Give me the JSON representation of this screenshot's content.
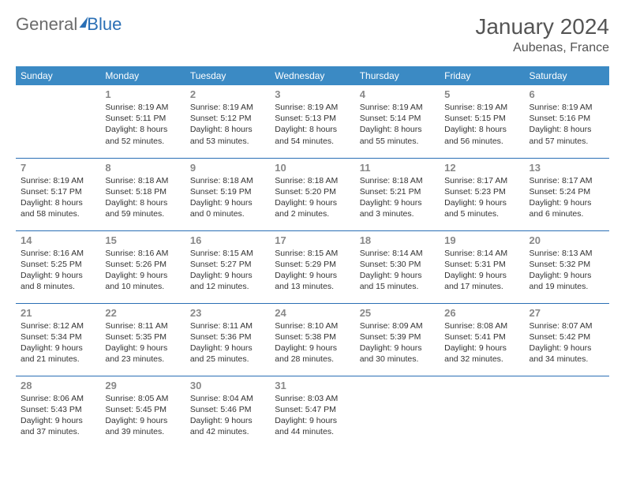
{
  "logo": {
    "word1": "General",
    "word2": "Blue"
  },
  "title": "January 2024",
  "location": "Aubenas, France",
  "day_headers": [
    "Sunday",
    "Monday",
    "Tuesday",
    "Wednesday",
    "Thursday",
    "Friday",
    "Saturday"
  ],
  "style": {
    "header_bg": "#3b8ac4",
    "header_fg": "#ffffff",
    "row_border": "#2a6fb5",
    "daynum_color": "#888888",
    "body_text_color": "#333333",
    "title_color": "#555555",
    "page_bg": "#ffffff",
    "cell_font_size": 10.5,
    "header_font_size": 12,
    "title_font_size": 28,
    "location_font_size": 16,
    "logo_font_size": 22
  },
  "weeks": [
    [
      {
        "day": "",
        "lines": [
          "",
          "",
          "",
          ""
        ]
      },
      {
        "day": "1",
        "lines": [
          "Sunrise: 8:19 AM",
          "Sunset: 5:11 PM",
          "Daylight: 8 hours",
          "and 52 minutes."
        ]
      },
      {
        "day": "2",
        "lines": [
          "Sunrise: 8:19 AM",
          "Sunset: 5:12 PM",
          "Daylight: 8 hours",
          "and 53 minutes."
        ]
      },
      {
        "day": "3",
        "lines": [
          "Sunrise: 8:19 AM",
          "Sunset: 5:13 PM",
          "Daylight: 8 hours",
          "and 54 minutes."
        ]
      },
      {
        "day": "4",
        "lines": [
          "Sunrise: 8:19 AM",
          "Sunset: 5:14 PM",
          "Daylight: 8 hours",
          "and 55 minutes."
        ]
      },
      {
        "day": "5",
        "lines": [
          "Sunrise: 8:19 AM",
          "Sunset: 5:15 PM",
          "Daylight: 8 hours",
          "and 56 minutes."
        ]
      },
      {
        "day": "6",
        "lines": [
          "Sunrise: 8:19 AM",
          "Sunset: 5:16 PM",
          "Daylight: 8 hours",
          "and 57 minutes."
        ]
      }
    ],
    [
      {
        "day": "7",
        "lines": [
          "Sunrise: 8:19 AM",
          "Sunset: 5:17 PM",
          "Daylight: 8 hours",
          "and 58 minutes."
        ]
      },
      {
        "day": "8",
        "lines": [
          "Sunrise: 8:18 AM",
          "Sunset: 5:18 PM",
          "Daylight: 8 hours",
          "and 59 minutes."
        ]
      },
      {
        "day": "9",
        "lines": [
          "Sunrise: 8:18 AM",
          "Sunset: 5:19 PM",
          "Daylight: 9 hours",
          "and 0 minutes."
        ]
      },
      {
        "day": "10",
        "lines": [
          "Sunrise: 8:18 AM",
          "Sunset: 5:20 PM",
          "Daylight: 9 hours",
          "and 2 minutes."
        ]
      },
      {
        "day": "11",
        "lines": [
          "Sunrise: 8:18 AM",
          "Sunset: 5:21 PM",
          "Daylight: 9 hours",
          "and 3 minutes."
        ]
      },
      {
        "day": "12",
        "lines": [
          "Sunrise: 8:17 AM",
          "Sunset: 5:23 PM",
          "Daylight: 9 hours",
          "and 5 minutes."
        ]
      },
      {
        "day": "13",
        "lines": [
          "Sunrise: 8:17 AM",
          "Sunset: 5:24 PM",
          "Daylight: 9 hours",
          "and 6 minutes."
        ]
      }
    ],
    [
      {
        "day": "14",
        "lines": [
          "Sunrise: 8:16 AM",
          "Sunset: 5:25 PM",
          "Daylight: 9 hours",
          "and 8 minutes."
        ]
      },
      {
        "day": "15",
        "lines": [
          "Sunrise: 8:16 AM",
          "Sunset: 5:26 PM",
          "Daylight: 9 hours",
          "and 10 minutes."
        ]
      },
      {
        "day": "16",
        "lines": [
          "Sunrise: 8:15 AM",
          "Sunset: 5:27 PM",
          "Daylight: 9 hours",
          "and 12 minutes."
        ]
      },
      {
        "day": "17",
        "lines": [
          "Sunrise: 8:15 AM",
          "Sunset: 5:29 PM",
          "Daylight: 9 hours",
          "and 13 minutes."
        ]
      },
      {
        "day": "18",
        "lines": [
          "Sunrise: 8:14 AM",
          "Sunset: 5:30 PM",
          "Daylight: 9 hours",
          "and 15 minutes."
        ]
      },
      {
        "day": "19",
        "lines": [
          "Sunrise: 8:14 AM",
          "Sunset: 5:31 PM",
          "Daylight: 9 hours",
          "and 17 minutes."
        ]
      },
      {
        "day": "20",
        "lines": [
          "Sunrise: 8:13 AM",
          "Sunset: 5:32 PM",
          "Daylight: 9 hours",
          "and 19 minutes."
        ]
      }
    ],
    [
      {
        "day": "21",
        "lines": [
          "Sunrise: 8:12 AM",
          "Sunset: 5:34 PM",
          "Daylight: 9 hours",
          "and 21 minutes."
        ]
      },
      {
        "day": "22",
        "lines": [
          "Sunrise: 8:11 AM",
          "Sunset: 5:35 PM",
          "Daylight: 9 hours",
          "and 23 minutes."
        ]
      },
      {
        "day": "23",
        "lines": [
          "Sunrise: 8:11 AM",
          "Sunset: 5:36 PM",
          "Daylight: 9 hours",
          "and 25 minutes."
        ]
      },
      {
        "day": "24",
        "lines": [
          "Sunrise: 8:10 AM",
          "Sunset: 5:38 PM",
          "Daylight: 9 hours",
          "and 28 minutes."
        ]
      },
      {
        "day": "25",
        "lines": [
          "Sunrise: 8:09 AM",
          "Sunset: 5:39 PM",
          "Daylight: 9 hours",
          "and 30 minutes."
        ]
      },
      {
        "day": "26",
        "lines": [
          "Sunrise: 8:08 AM",
          "Sunset: 5:41 PM",
          "Daylight: 9 hours",
          "and 32 minutes."
        ]
      },
      {
        "day": "27",
        "lines": [
          "Sunrise: 8:07 AM",
          "Sunset: 5:42 PM",
          "Daylight: 9 hours",
          "and 34 minutes."
        ]
      }
    ],
    [
      {
        "day": "28",
        "lines": [
          "Sunrise: 8:06 AM",
          "Sunset: 5:43 PM",
          "Daylight: 9 hours",
          "and 37 minutes."
        ]
      },
      {
        "day": "29",
        "lines": [
          "Sunrise: 8:05 AM",
          "Sunset: 5:45 PM",
          "Daylight: 9 hours",
          "and 39 minutes."
        ]
      },
      {
        "day": "30",
        "lines": [
          "Sunrise: 8:04 AM",
          "Sunset: 5:46 PM",
          "Daylight: 9 hours",
          "and 42 minutes."
        ]
      },
      {
        "day": "31",
        "lines": [
          "Sunrise: 8:03 AM",
          "Sunset: 5:47 PM",
          "Daylight: 9 hours",
          "and 44 minutes."
        ]
      },
      {
        "day": "",
        "lines": [
          "",
          "",
          "",
          ""
        ]
      },
      {
        "day": "",
        "lines": [
          "",
          "",
          "",
          ""
        ]
      },
      {
        "day": "",
        "lines": [
          "",
          "",
          "",
          ""
        ]
      }
    ]
  ]
}
